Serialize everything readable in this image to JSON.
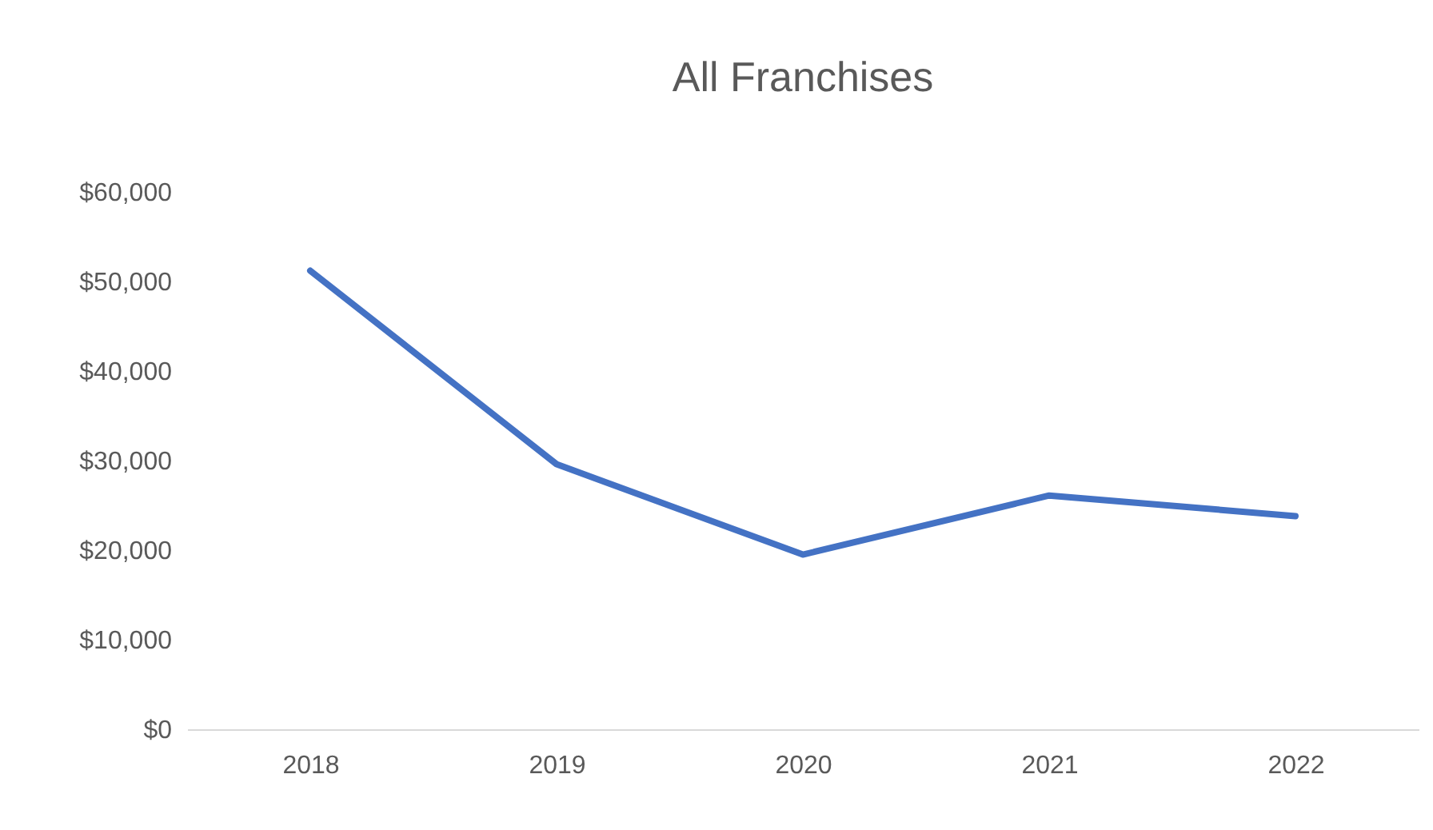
{
  "chart_data": {
    "type": "line",
    "title": "All Franchises",
    "categories": [
      "2018",
      "2019",
      "2020",
      "2021",
      "2022"
    ],
    "series": [
      {
        "color": "#4472c4",
        "values": [
          51200,
          29600,
          19500,
          26100,
          23800
        ]
      }
    ],
    "ylim": [
      0,
      60000
    ],
    "yticks": [
      {
        "value": 0,
        "label": "$0"
      },
      {
        "value": 10000,
        "label": "$10,000"
      },
      {
        "value": 20000,
        "label": "$20,000"
      },
      {
        "value": 30000,
        "label": "$30,000"
      },
      {
        "value": 40000,
        "label": "$40,000"
      },
      {
        "value": 50000,
        "label": "$50,000"
      },
      {
        "value": 60000,
        "label": "$60,000"
      }
    ],
    "legend": false,
    "marker": "none",
    "line_style": "solid"
  }
}
